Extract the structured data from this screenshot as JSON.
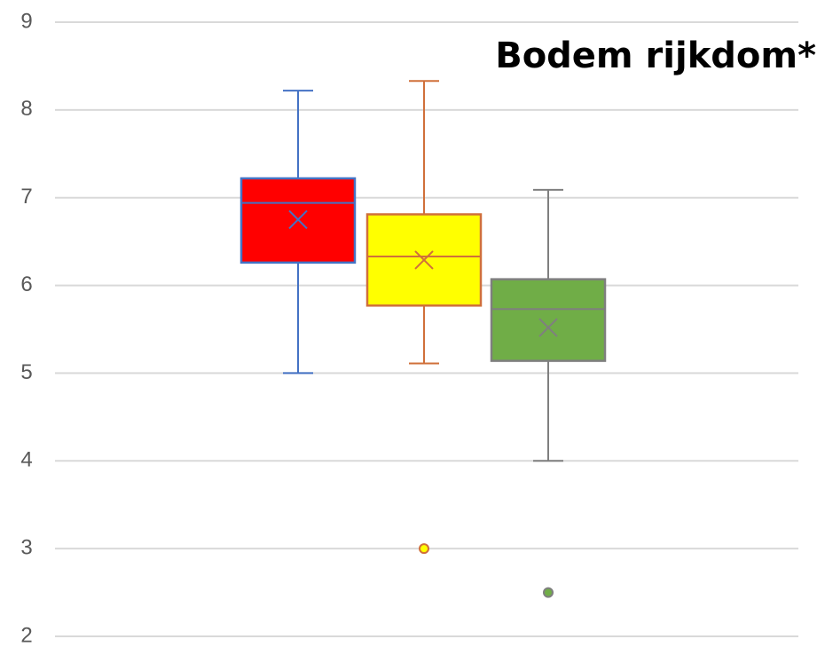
{
  "chart_data": {
    "type": "box",
    "title": "Bodem rijkdom*",
    "ylim": [
      2,
      9
    ],
    "yticks": [
      2,
      3,
      4,
      5,
      6,
      7,
      8,
      9
    ],
    "grid": true,
    "series": [
      {
        "color": "#ff0000",
        "line_color": "#4472c4",
        "min": 5.0,
        "q1": 6.26,
        "median": 6.94,
        "q3": 7.22,
        "max": 8.22,
        "mean": 6.75,
        "outliers": []
      },
      {
        "color": "#ffff00",
        "line_color": "#d0703a",
        "min": 5.11,
        "q1": 5.77,
        "median": 6.33,
        "q3": 6.81,
        "max": 8.33,
        "mean": 6.29,
        "outliers": [
          3.0
        ]
      },
      {
        "color": "#70ad47",
        "line_color": "#7f7f7f",
        "min": 4.0,
        "q1": 5.14,
        "median": 5.73,
        "q3": 6.07,
        "max": 7.09,
        "mean": 5.52,
        "outliers": [
          2.5
        ]
      }
    ]
  }
}
